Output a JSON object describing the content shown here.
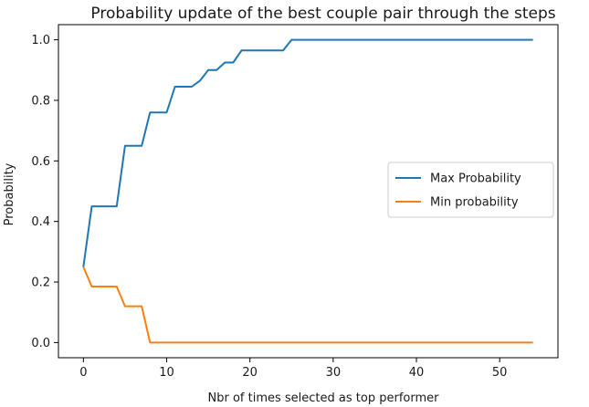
{
  "chart_data": {
    "type": "line",
    "title": "Probability update of the best couple pair through the steps",
    "xlabel": "Nbr of times selected as top performer",
    "ylabel": "Probability",
    "xlim": [
      -3,
      57
    ],
    "ylim": [
      -0.05,
      1.05
    ],
    "xticks": [
      0,
      10,
      20,
      30,
      40,
      50
    ],
    "yticks": [
      0.0,
      0.2,
      0.4,
      0.6,
      0.8,
      1.0
    ],
    "xtick_labels": [
      "0",
      "10",
      "20",
      "30",
      "40",
      "50"
    ],
    "ytick_labels": [
      "0.0",
      "0.2",
      "0.4",
      "0.6",
      "0.8",
      "1.0"
    ],
    "grid": false,
    "legend_position": "center-right",
    "series": [
      {
        "name": "Max Probability",
        "color": "#1f77b4",
        "points": [
          [
            0,
            0.25
          ],
          [
            1,
            0.45
          ],
          [
            2,
            0.45
          ],
          [
            3,
            0.45
          ],
          [
            4,
            0.45
          ],
          [
            5,
            0.65
          ],
          [
            6,
            0.65
          ],
          [
            7,
            0.65
          ],
          [
            8,
            0.76
          ],
          [
            9,
            0.76
          ],
          [
            10,
            0.76
          ],
          [
            11,
            0.845
          ],
          [
            12,
            0.845
          ],
          [
            13,
            0.845
          ],
          [
            14,
            0.865
          ],
          [
            15,
            0.9
          ],
          [
            16,
            0.9
          ],
          [
            17,
            0.925
          ],
          [
            18,
            0.925
          ],
          [
            19,
            0.965
          ],
          [
            20,
            0.965
          ],
          [
            21,
            0.965
          ],
          [
            22,
            0.965
          ],
          [
            23,
            0.965
          ],
          [
            24,
            0.965
          ],
          [
            25,
            1.0
          ],
          [
            30,
            1.0
          ],
          [
            40,
            1.0
          ],
          [
            50,
            1.0
          ],
          [
            54,
            1.0
          ]
        ]
      },
      {
        "name": "Min probability",
        "color": "#ff7f0e",
        "points": [
          [
            0,
            0.25
          ],
          [
            1,
            0.185
          ],
          [
            2,
            0.185
          ],
          [
            3,
            0.185
          ],
          [
            4,
            0.185
          ],
          [
            5,
            0.12
          ],
          [
            6,
            0.12
          ],
          [
            7,
            0.12
          ],
          [
            8,
            0.0
          ],
          [
            10,
            0.0
          ],
          [
            20,
            0.0
          ],
          [
            30,
            0.0
          ],
          [
            40,
            0.0
          ],
          [
            50,
            0.0
          ],
          [
            54,
            0.0
          ]
        ]
      }
    ]
  }
}
